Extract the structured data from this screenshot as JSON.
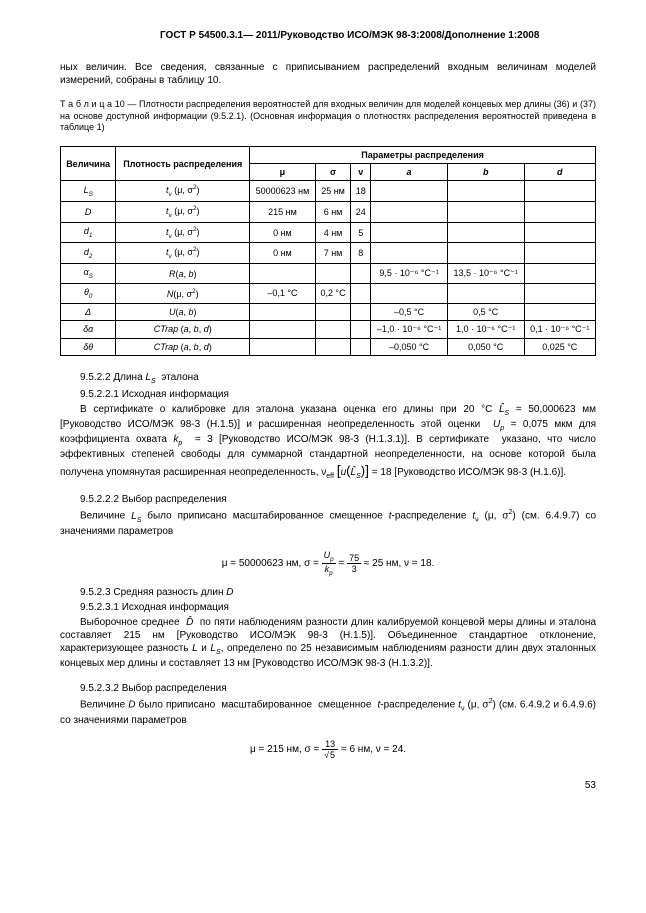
{
  "header": "ГОСТ Р 54500.3.1— 2011/Руководство ИСО/МЭК 98-3:2008/Дополнение 1:2008",
  "intro": "ных величин. Все сведения, связанные с приписыванием распределений входным величинам моделей измерений, собраны в таблицу 10.",
  "table_caption": "Т а б л и ц а  10 — Плотности распределения вероятностей для входных величин для моделей концевых мер длины (36) и (37) на основе доступной информации (9.5.2.1). (Основная информация о плотностях распределения вероятностей приведена в таблице 1)",
  "table": {
    "head_row1": {
      "c1": "Величина",
      "c2": "Плотность распределения",
      "c3": "Параметры распределения"
    },
    "head_row2": {
      "mu": "μ",
      "sigma": "σ",
      "nu": "ν",
      "a": "a",
      "b": "b",
      "d": "d"
    },
    "rows": [
      {
        "v": "L_S",
        "dist": "t_ν (μ, σ²)",
        "mu": "50000623 нм",
        "sigma": "25 нм",
        "nu": "18",
        "a": "",
        "b": "",
        "d": ""
      },
      {
        "v": "D",
        "dist": "t_ν (μ, σ²)",
        "mu": "215 нм",
        "sigma": "6 нм",
        "nu": "24",
        "a": "",
        "b": "",
        "d": ""
      },
      {
        "v": "d_1",
        "dist": "t_ν (μ, σ²)",
        "mu": "0 нм",
        "sigma": "4 нм",
        "nu": "5",
        "a": "",
        "b": "",
        "d": ""
      },
      {
        "v": "d_2",
        "dist": "t_ν (μ, σ²)",
        "mu": "0 нм",
        "sigma": "7 нм",
        "nu": "8",
        "a": "",
        "b": "",
        "d": ""
      },
      {
        "v": "α_S",
        "dist": "R(a, b)",
        "mu": "",
        "sigma": "",
        "nu": "",
        "a": "9,5 · 10⁻⁶ °C⁻¹",
        "b": "13,5 · 10⁻⁶ °C⁻¹",
        "d": ""
      },
      {
        "v": "θ_0",
        "dist": "N(μ, σ²)",
        "mu": "–0,1 °C",
        "sigma": "0,2 °C",
        "nu": "",
        "a": "",
        "b": "",
        "d": ""
      },
      {
        "v": "Δ",
        "dist": "U(a, b)",
        "mu": "",
        "sigma": "",
        "nu": "",
        "a": "–0,5 °C",
        "b": "0,5 °C",
        "d": ""
      },
      {
        "v": "δα",
        "dist": "CTrap (a, b, d)",
        "mu": "",
        "sigma": "",
        "nu": "",
        "a": "–1,0 · 10⁻⁶ °C⁻¹",
        "b": "1,0 · 10⁻⁶ °C⁻¹",
        "d": "0,1 · 10⁻⁶ °C⁻¹"
      },
      {
        "v": "δθ",
        "dist": "CTrap (a, b, d)",
        "mu": "",
        "sigma": "",
        "nu": "",
        "a": "–0,050 °C",
        "b": "0,050 °C",
        "d": "0,025 °C"
      }
    ]
  },
  "sec9522a": "9.5.2.2 Длина L_S  эталона",
  "sec9522b": "9.5.2.2.1 Исходная информация",
  "para2_a": "В сертификате о калибровке для эталона указана оценка его длины при  20 °C ",
  "para2_b": " = 50,000623 мм [Руководство ИСО/МЭК 98-3 (Н.1.5)] и расширенная неопределенность этой оценки  U_p = 0,075 мкм для коэффициента охвата k_p  = 3 [Руководство ИСО/МЭК 98-3 (Н.1.3.1)]. В сертификате  указано, что число эффективных степеней свободы для суммарной стандартной неопределенности, на основе которой была получена упомянутая расширенная неопределенность, ν_eff",
  "para2_c": "= 18 [Руководство ИСО/МЭК 98-3 (Н.1.6)].",
  "sec95222": "9.5.2.2.2 Выбор распределения",
  "para3": "Величине L_S было приписано масштабированное смещенное t-распределение t_ν (μ, σ²) (см. 6.4.9.7) со значениями параметров",
  "formula1_a": "μ = 50000623 нм,   σ =",
  "formula1_mid": "25 нм, ν = 18.",
  "sec9523a": "9.5.2.3 Средняя разность длин D",
  "sec9523b": "9.5.2.3.1 Исходная информация",
  "para4": "Выборочное среднее  D̂  по пяти наблюдениям разности длин калибруемой концевой меры длины и эталона составляет 215 нм [Руководство ИСО/МЭК 98-3 (Н.1.5)]. Объединенное стандартное отклонение, характеризующее разность L и L_S, определено по 25 независимым наблюдениям разности длин двух эталонных концевых мер длины и составляет 13 нм [Руководство ИСО/МЭК 98-3 (Н.1.3.2)].",
  "sec95232": "9.5.2.3.2 Выбор распределения",
  "para5": "Величине D было приписано  масштабированное  смещенное  t-распределение t_ν (μ, σ²) (см. 6.4.9.2 и 6.4.9.6) со значениями параметров",
  "formula2_a": "μ = 215 нм,   σ = ",
  "formula2_b": " = 6 нм,   ν = 24.",
  "pagenum": "53"
}
